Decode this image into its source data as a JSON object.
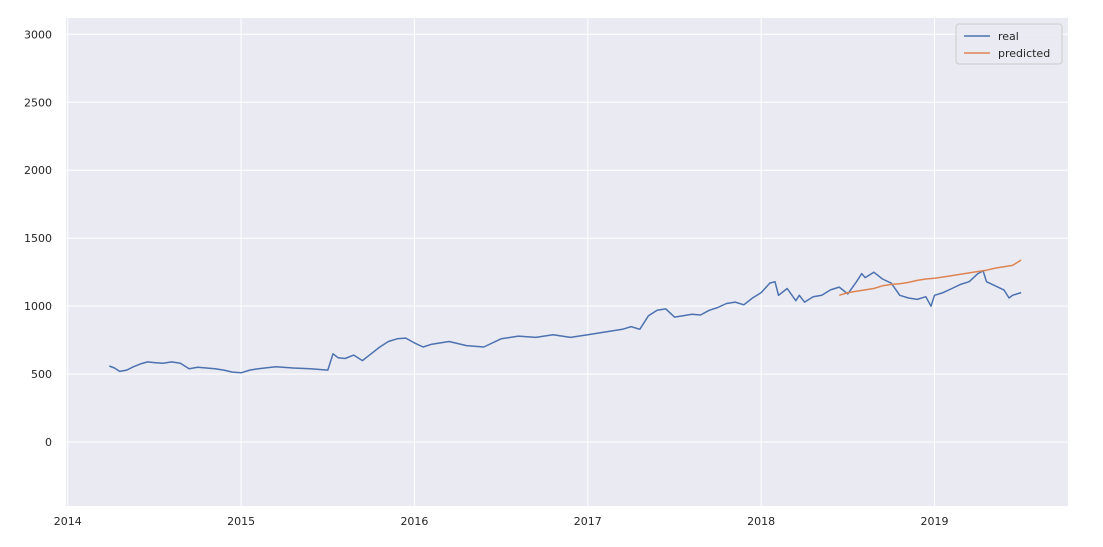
{
  "chart_data": {
    "type": "line",
    "title": "",
    "xlabel": "",
    "ylabel": "",
    "xlim": [
      2013.99,
      2019.77
    ],
    "ylim": [
      -470,
      3120
    ],
    "x_ticks": [
      {
        "value": 2014,
        "label": "2014"
      },
      {
        "value": 2015,
        "label": "2015"
      },
      {
        "value": 2016,
        "label": "2016"
      },
      {
        "value": 2017,
        "label": "2017"
      },
      {
        "value": 2018,
        "label": "2018"
      },
      {
        "value": 2019,
        "label": "2019"
      }
    ],
    "y_ticks": [
      {
        "value": 0,
        "label": "0"
      },
      {
        "value": 500,
        "label": "500"
      },
      {
        "value": 1000,
        "label": "1000"
      },
      {
        "value": 1500,
        "label": "1500"
      },
      {
        "value": 2000,
        "label": "2000"
      },
      {
        "value": 2500,
        "label": "2500"
      },
      {
        "value": 3000,
        "label": "3000"
      }
    ],
    "grid": true,
    "legend_position": "top-right",
    "series": [
      {
        "name": "real",
        "color": "#4c72b0",
        "x": [
          2014.24,
          2014.27,
          2014.3,
          2014.34,
          2014.38,
          2014.42,
          2014.46,
          2014.5,
          2014.55,
          2014.6,
          2014.65,
          2014.7,
          2014.75,
          2014.8,
          2014.85,
          2014.9,
          2014.95,
          2015.0,
          2015.05,
          2015.1,
          2015.2,
          2015.3,
          2015.4,
          2015.5,
          2015.53,
          2015.56,
          2015.6,
          2015.65,
          2015.7,
          2015.75,
          2015.8,
          2015.85,
          2015.9,
          2015.95,
          2016.0,
          2016.05,
          2016.1,
          2016.2,
          2016.3,
          2016.4,
          2016.5,
          2016.6,
          2016.7,
          2016.8,
          2016.9,
          2017.0,
          2017.1,
          2017.2,
          2017.25,
          2017.3,
          2017.35,
          2017.4,
          2017.45,
          2017.5,
          2017.55,
          2017.6,
          2017.65,
          2017.7,
          2017.75,
          2017.8,
          2017.85,
          2017.9,
          2017.95,
          2018.0,
          2018.05,
          2018.08,
          2018.1,
          2018.15,
          2018.2,
          2018.22,
          2018.25,
          2018.3,
          2018.35,
          2018.4,
          2018.45,
          2018.5,
          2018.55,
          2018.58,
          2018.6,
          2018.65,
          2018.7,
          2018.75,
          2018.8,
          2018.85,
          2018.9,
          2018.95,
          2018.98,
          2019.0,
          2019.05,
          2019.1,
          2019.15,
          2019.2,
          2019.25,
          2019.28,
          2019.3,
          2019.35,
          2019.4,
          2019.43,
          2019.45,
          2019.5
        ],
        "y": [
          560,
          545,
          520,
          530,
          555,
          575,
          590,
          585,
          580,
          590,
          580,
          540,
          550,
          545,
          540,
          530,
          515,
          510,
          530,
          540,
          555,
          545,
          540,
          530,
          650,
          620,
          615,
          640,
          600,
          650,
          700,
          740,
          760,
          765,
          730,
          700,
          720,
          740,
          710,
          700,
          760,
          780,
          770,
          790,
          770,
          790,
          810,
          830,
          850,
          830,
          930,
          970,
          980,
          920,
          930,
          940,
          935,
          970,
          990,
          1020,
          1030,
          1010,
          1060,
          1100,
          1170,
          1180,
          1080,
          1130,
          1040,
          1080,
          1030,
          1070,
          1080,
          1120,
          1140,
          1090,
          1180,
          1240,
          1210,
          1250,
          1200,
          1170,
          1080,
          1060,
          1050,
          1070,
          1000,
          1080,
          1100,
          1130,
          1160,
          1180,
          1240,
          1260,
          1180,
          1150,
          1120,
          1060,
          1080,
          1100
        ]
      },
      {
        "name": "predicted",
        "color": "#dd8452",
        "x": [
          2018.45,
          2018.5,
          2018.55,
          2018.6,
          2018.65,
          2018.7,
          2018.75,
          2018.8,
          2018.85,
          2018.9,
          2018.95,
          2019.0,
          2019.05,
          2019.1,
          2019.15,
          2019.2,
          2019.25,
          2019.3,
          2019.35,
          2019.4,
          2019.45,
          2019.5
        ],
        "y": [
          1080,
          1100,
          1110,
          1120,
          1130,
          1150,
          1160,
          1165,
          1175,
          1190,
          1200,
          1205,
          1215,
          1225,
          1235,
          1245,
          1255,
          1265,
          1280,
          1290,
          1300,
          1340
        ]
      }
    ]
  }
}
